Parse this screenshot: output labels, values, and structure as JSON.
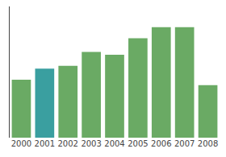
{
  "chart_data": {
    "type": "bar",
    "categories": [
      "2000",
      "2001",
      "2002",
      "2003",
      "2004",
      "2005",
      "2006",
      "2007",
      "2008"
    ],
    "values": [
      42,
      50,
      52,
      62,
      60,
      72,
      80,
      80,
      38
    ],
    "colors": [
      "#6aaa64",
      "#3a9fa0",
      "#6aaa64",
      "#6aaa64",
      "#6aaa64",
      "#6aaa64",
      "#6aaa64",
      "#6aaa64",
      "#6aaa64"
    ],
    "ylim": [
      0,
      95
    ],
    "yticks": [],
    "grid": false,
    "tick_labels": "x"
  }
}
